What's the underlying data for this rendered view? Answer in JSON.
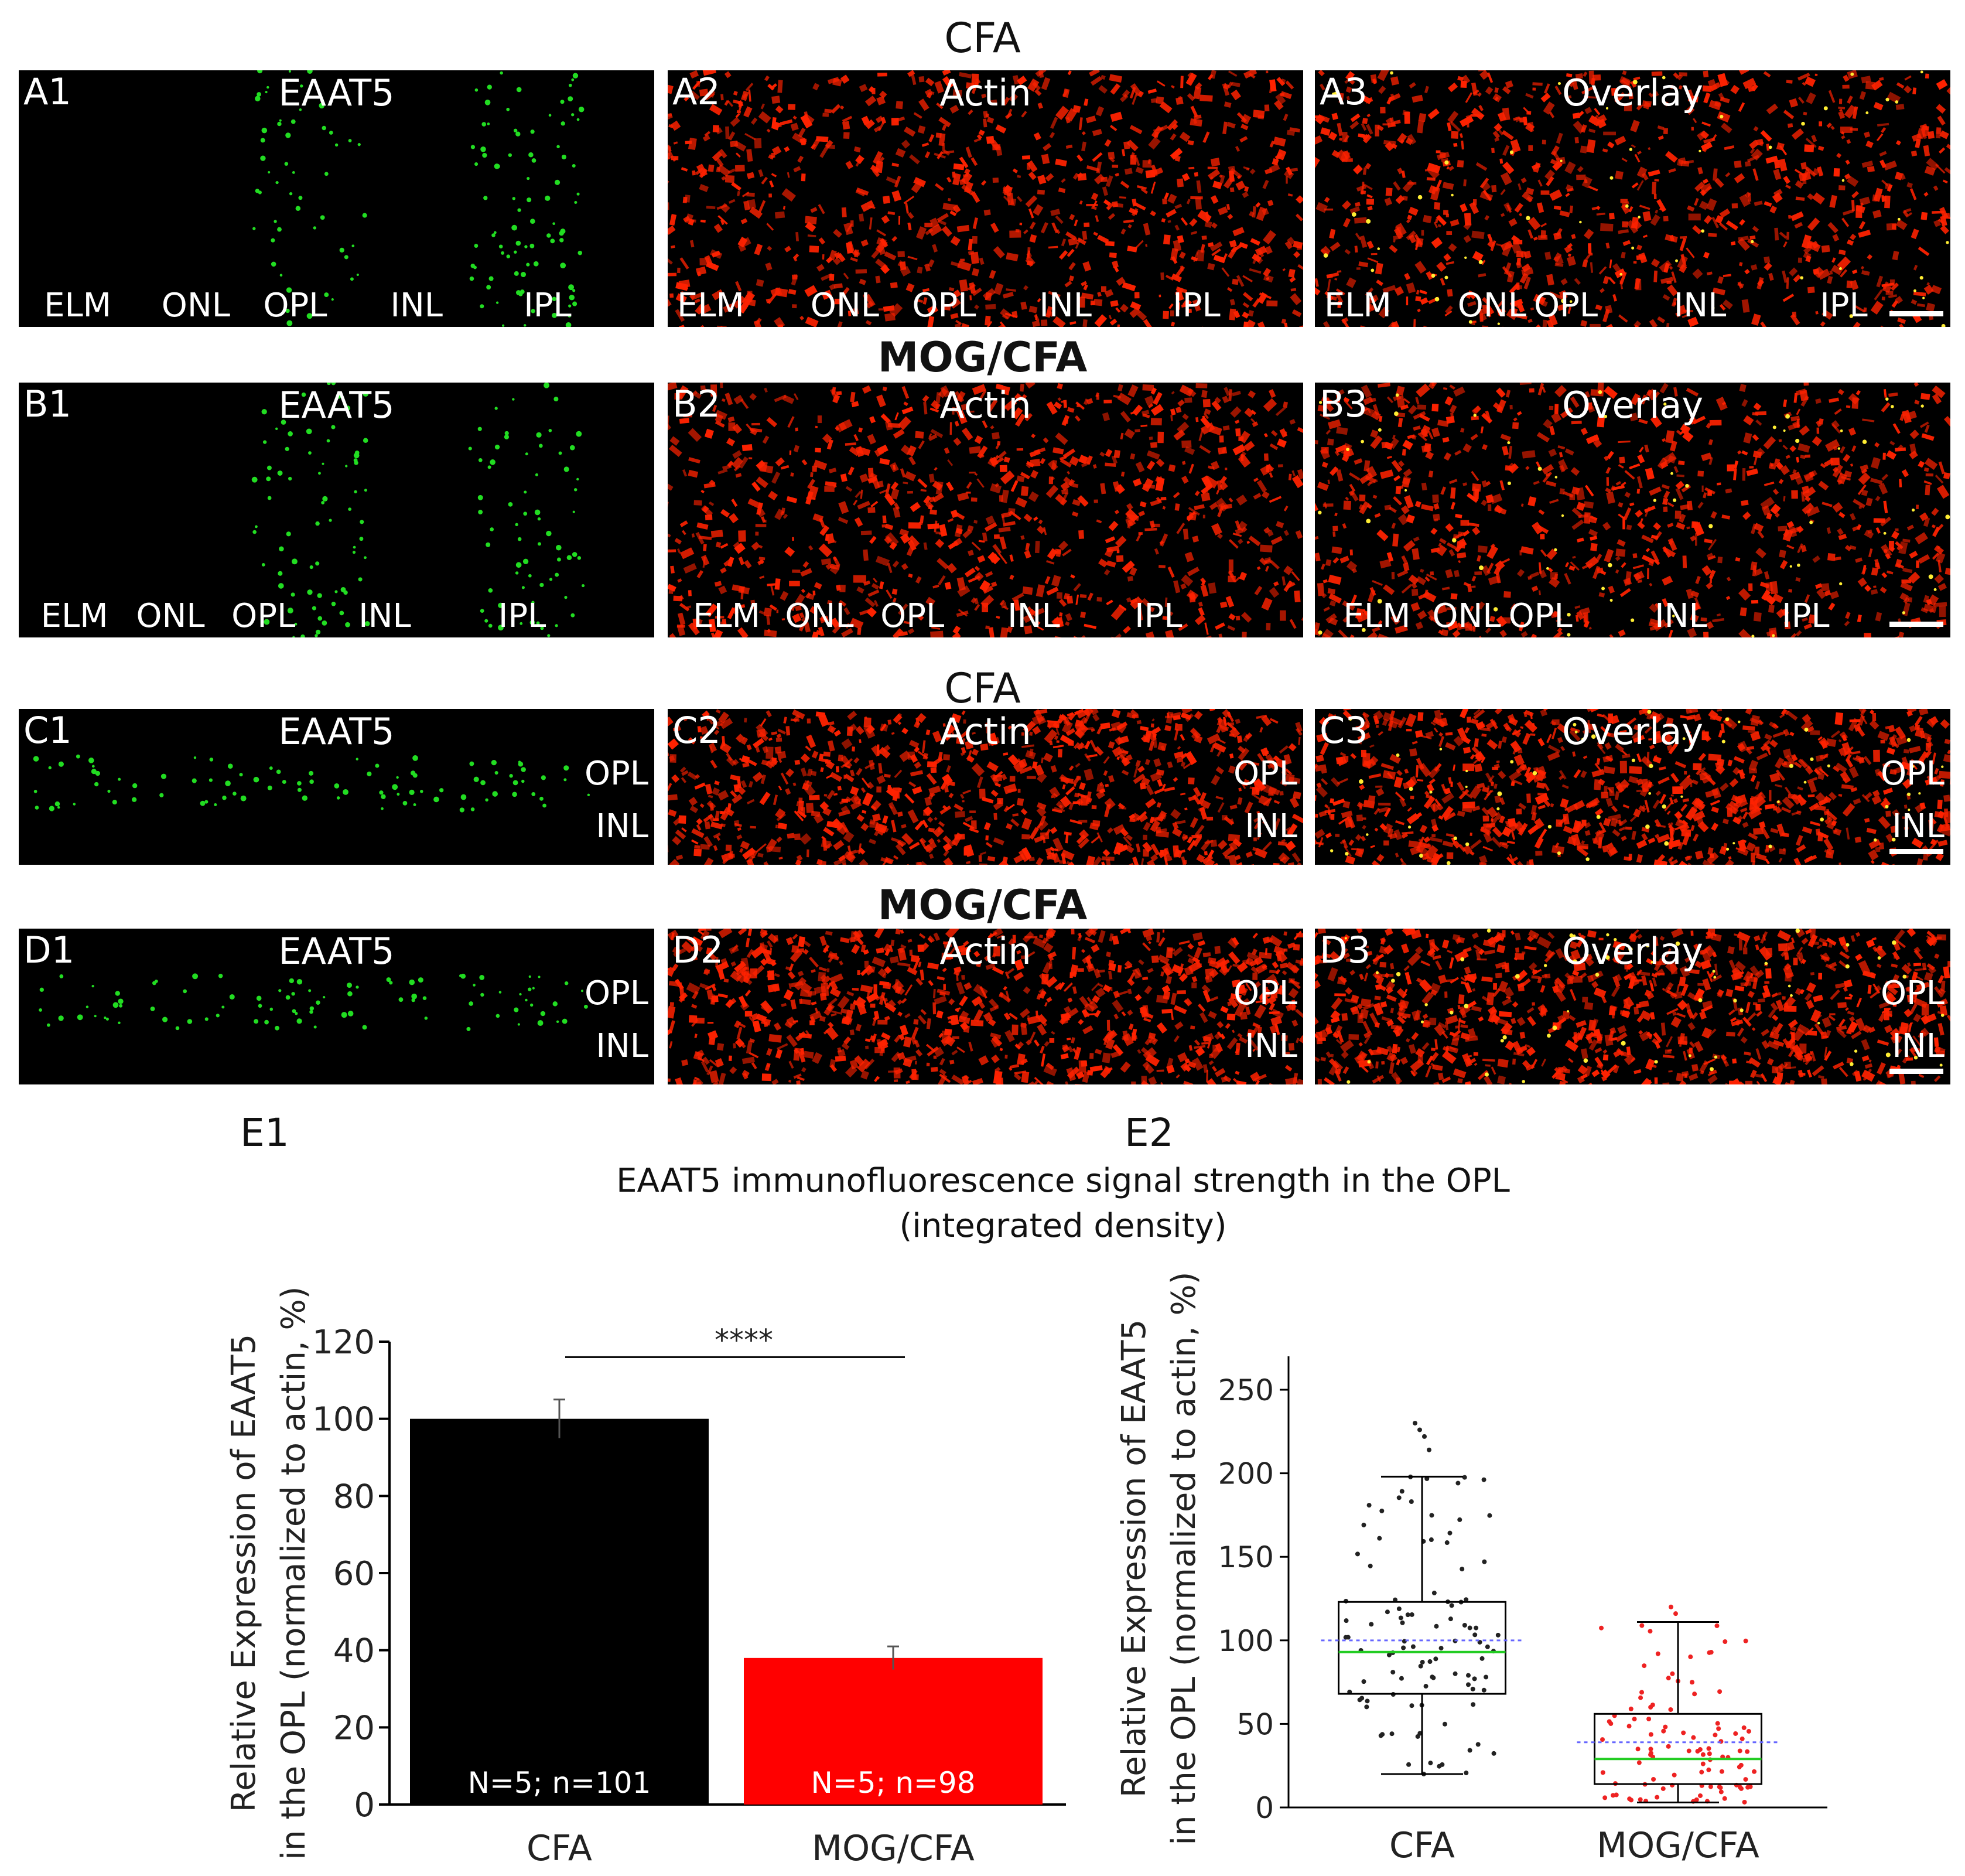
{
  "row_titles": {
    "a": "CFA",
    "b": "MOG/CFA",
    "c": "CFA",
    "d": "MOG/CFA"
  },
  "panels": {
    "A1": {
      "label": "A1",
      "name": "EAAT5",
      "layers": [
        "ELM",
        "ONL",
        "OPL",
        "INL",
        "IPL"
      ]
    },
    "A2": {
      "label": "A2",
      "name": "Actin",
      "layers": [
        "ELM",
        "ONL",
        "OPL",
        "INL",
        "IPL"
      ]
    },
    "A3": {
      "label": "A3",
      "name": "Overlay",
      "layers": [
        "ELM",
        "ONL",
        "OPL",
        "INL",
        "IPL"
      ]
    },
    "B1": {
      "label": "B1",
      "name": "EAAT5",
      "layers": [
        "ELM",
        "ONL",
        "OPL",
        "INL",
        "IPL"
      ]
    },
    "B2": {
      "label": "B2",
      "name": "Actin",
      "layers": [
        "ELM",
        "ONL",
        "OPL",
        "INL",
        "IPL"
      ]
    },
    "B3": {
      "label": "B3",
      "name": "Overlay",
      "layers": [
        "ELM",
        "ONL",
        "OPL",
        "INL",
        "IPL"
      ]
    },
    "C1": {
      "label": "C1",
      "name": "EAAT5",
      "layers": [
        "OPL",
        "INL"
      ]
    },
    "C2": {
      "label": "C2",
      "name": "Actin",
      "layers": [
        "OPL",
        "INL"
      ]
    },
    "C3": {
      "label": "C3",
      "name": "Overlay",
      "layers": [
        "OPL",
        "INL"
      ]
    },
    "D1": {
      "label": "D1",
      "name": "EAAT5",
      "layers": [
        "OPL",
        "INL"
      ]
    },
    "D2": {
      "label": "D2",
      "name": "Actin",
      "layers": [
        "OPL",
        "INL"
      ]
    },
    "D3": {
      "label": "D3",
      "name": "Overlay",
      "layers": [
        "OPL",
        "INL"
      ]
    }
  },
  "colors": {
    "eaat5": "#22dd22",
    "actin": "#ff2200",
    "cfa_bar": "#000000",
    "mog_bar": "#ff0000",
    "cfa_points": "#222222",
    "mog_points": "#ee2222",
    "median": "#22cc22",
    "mean": "#6666ff"
  },
  "e1_label": "E1",
  "e2_label": "E2",
  "e2_title_line1": "EAAT5 immunofluorescence signal strength in the OPL",
  "e2_title_line2": "(integrated density)",
  "chart_data": [
    {
      "type": "bar",
      "ylabel_line1": "Relative Expression of EAAT5",
      "ylabel_line2": "in the OPL (normalized to actin, %)",
      "ylim": [
        0,
        120
      ],
      "yticks": [
        0,
        20,
        40,
        60,
        80,
        100,
        120
      ],
      "categories": [
        "CFA",
        "MOG/CFA"
      ],
      "values": [
        100,
        38
      ],
      "errors": [
        5,
        3
      ],
      "bar_labels": [
        "N=5; n=101",
        "N=5; n=98"
      ],
      "significance": "****"
    },
    {
      "type": "box",
      "ylabel_line1": "Relative Expression of EAAT5",
      "ylabel_line2": "in the OPL (normalized to actin, %)",
      "ylim": [
        0,
        270
      ],
      "yticks": [
        0,
        50,
        100,
        150,
        200,
        250
      ],
      "categories": [
        "CFA",
        "MOG/CFA"
      ],
      "boxes": [
        {
          "whisker_low": 20,
          "q1": 68,
          "median": 93,
          "q3": 123,
          "whisker_high": 198,
          "mean": 100
        },
        {
          "whisker_low": 3,
          "q1": 14,
          "median": 29,
          "q3": 56,
          "whisker_high": 111,
          "mean": 39
        }
      ],
      "outliers": [
        {
          "group": 0,
          "values": [
            230,
            226,
            222,
            214
          ]
        },
        {
          "group": 1,
          "values": [
            120,
            116
          ]
        }
      ]
    }
  ]
}
